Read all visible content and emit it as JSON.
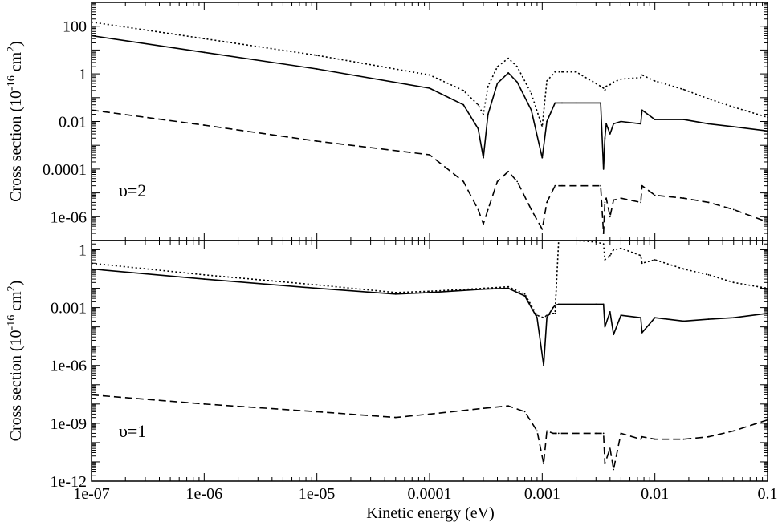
{
  "chart_data": [
    {
      "type": "line",
      "annotation": "υ=2",
      "ylabel": "Cross section (10^-16 cm^2)",
      "xlabel": "",
      "xscale": "log",
      "yscale": "log",
      "xlim": [
        1e-07,
        0.1
      ],
      "ylim": [
        1e-07,
        1000
      ],
      "yticks": [
        1e-06,
        0.0001,
        0.01,
        1,
        100
      ],
      "ytick_labels": [
        "1e-06",
        "0.0001",
        "0.01",
        "1",
        "100"
      ],
      "x": [
        1e-07,
        1e-06,
        1e-05,
        0.0001,
        0.0002,
        0.00027,
        0.0003,
        0.00033,
        0.0004,
        0.0005,
        0.0006,
        0.0008,
        0.001,
        0.0011,
        0.0013,
        0.0015,
        0.002,
        0.0033,
        0.0035,
        0.0036,
        0.0037,
        0.004,
        0.0043,
        0.005,
        0.0075,
        0.0077,
        0.01,
        0.018,
        0.03,
        0.05,
        0.1
      ],
      "series": [
        {
          "style": "solid",
          "values": [
            40,
            8,
            1.6,
            0.25,
            0.05,
            0.005,
            0.0003,
            0.02,
            0.4,
            1.1,
            0.45,
            0.03,
            0.0003,
            0.01,
            0.06,
            0.06,
            0.06,
            0.06,
            0.0001,
            0.002,
            0.008,
            0.003,
            0.008,
            0.01,
            0.008,
            0.03,
            0.012,
            0.012,
            0.008,
            0.006,
            0.004
          ]
        },
        {
          "style": "dotted",
          "values": [
            150,
            30,
            6,
            0.9,
            0.2,
            0.05,
            0.02,
            0.3,
            2,
            4.5,
            2,
            0.15,
            0.006,
            0.5,
            1.2,
            1.2,
            1.2,
            0.3,
            0.25,
            0.2,
            0.3,
            0.35,
            0.45,
            0.6,
            0.7,
            0.9,
            0.5,
            0.22,
            0.09,
            0.04,
            0.015
          ]
        },
        {
          "style": "dashed",
          "values": [
            0.03,
            0.007,
            0.0015,
            0.0004,
            3e-05,
            2e-06,
            5e-07,
            2e-06,
            3e-05,
            8e-05,
            3e-05,
            2e-06,
            3e-07,
            4e-06,
            2e-05,
            2e-05,
            2e-05,
            2e-05,
            2e-07,
            4e-06,
            6e-06,
            1e-06,
            5e-06,
            6e-06,
            4e-06,
            2e-05,
            8e-06,
            6e-06,
            4e-06,
            2e-06,
            6e-07
          ]
        }
      ]
    },
    {
      "type": "line",
      "annotation": "υ=1",
      "ylabel": "Cross section (10^-16 cm^2)",
      "xlabel": "Kinetic energy (eV)",
      "xscale": "log",
      "yscale": "log",
      "xlim": [
        1e-07,
        0.1
      ],
      "ylim": [
        1e-12,
        3
      ],
      "yticks": [
        1e-12,
        1e-09,
        1e-06,
        0.001,
        1
      ],
      "ytick_labels": [
        "1e-12",
        "1e-09",
        "1e-06",
        "0.001",
        "1"
      ],
      "xticks": [
        1e-07,
        1e-06,
        1e-05,
        0.0001,
        0.001,
        0.01,
        0.1
      ],
      "xtick_labels": [
        "1e-07",
        "1e-06",
        "1e-05",
        "0.0001",
        "0.001",
        "0.01",
        "0.1"
      ],
      "x": [
        1e-07,
        1e-06,
        1e-05,
        5e-05,
        0.0001,
        0.0003,
        0.0005,
        0.0007,
        0.0009,
        0.00103,
        0.0011,
        0.00125,
        0.0013,
        0.0014,
        0.002,
        0.003,
        0.0035,
        0.0036,
        0.004,
        0.0043,
        0.005,
        0.0075,
        0.0077,
        0.01,
        0.018,
        0.03,
        0.05,
        0.1
      ],
      "series": [
        {
          "style": "solid",
          "values": [
            0.1,
            0.03,
            0.01,
            0.005,
            0.006,
            0.009,
            0.01,
            0.004,
            0.0003,
            1e-06,
            0.0003,
            0.001,
            0.0013,
            0.0015,
            0.0015,
            0.0015,
            0.0015,
            0.0001,
            0.0006,
            4e-05,
            0.0004,
            0.0003,
            5e-05,
            0.0003,
            0.0002,
            0.00025,
            0.0003,
            0.0005
          ]
        },
        {
          "style": "dotted",
          "values": [
            0.2,
            0.05,
            0.015,
            0.006,
            0.007,
            0.01,
            0.012,
            0.005,
            0.0004,
            0.0003,
            0.0004,
            0.0005,
            0.0005,
            3,
            3,
            2.5,
            2,
            0.3,
            0.5,
            1,
            1.2,
            0.5,
            0.2,
            0.3,
            0.1,
            0.05,
            0.02,
            0.01
          ]
        },
        {
          "style": "dashed",
          "values": [
            3e-08,
            1e-08,
            4e-09,
            2e-09,
            3e-09,
            6e-09,
            8e-09,
            4e-09,
            4e-10,
            8e-12,
            4e-10,
            3e-10,
            3e-10,
            3e-10,
            3e-10,
            3e-10,
            3e-10,
            8e-12,
            5e-11,
            4e-12,
            3e-10,
            1.5e-10,
            2e-10,
            1.5e-10,
            1.5e-10,
            2e-10,
            4e-10,
            1.5e-09
          ]
        }
      ]
    }
  ]
}
